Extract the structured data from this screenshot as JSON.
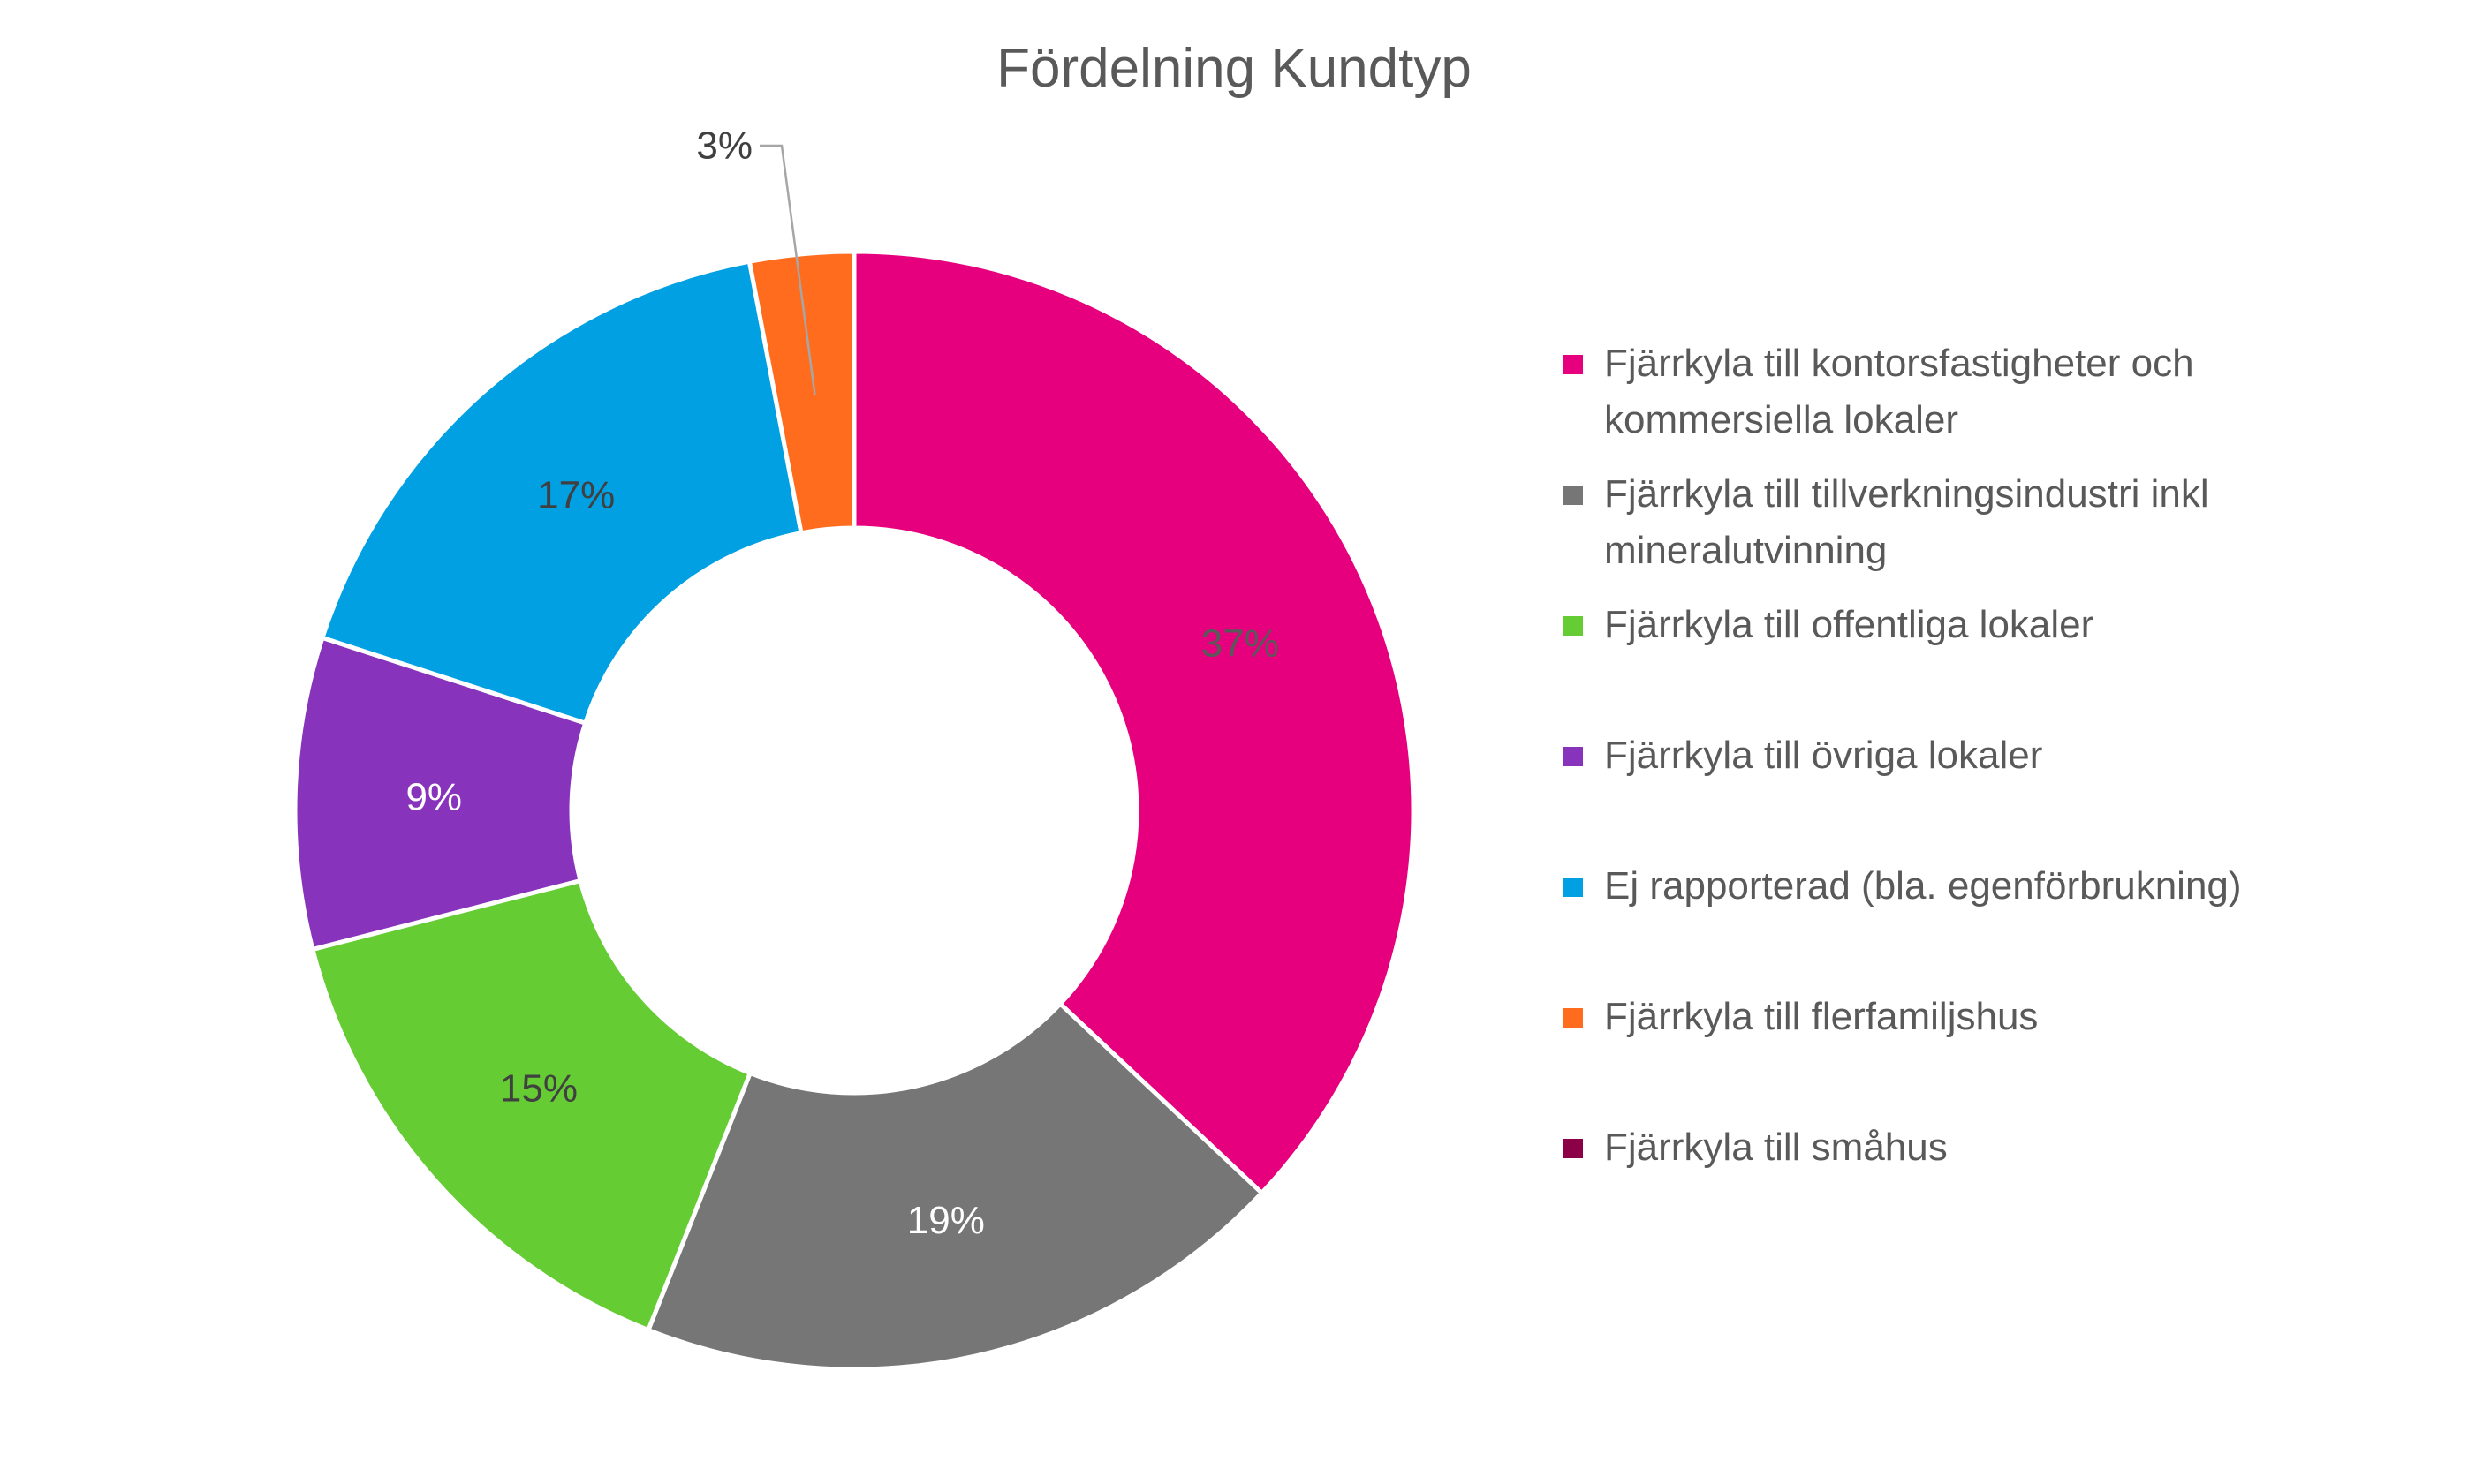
{
  "chart_data": {
    "type": "pie",
    "variant": "donut",
    "title": "Fördelning Kundtyp",
    "legend_position": "right",
    "slices": [
      {
        "name": "Fjärrkyla till kontorsfastigheter och kommersiella lokaler",
        "value": 37,
        "label": "37%",
        "color": "#E6007E",
        "label_color": "#595959"
      },
      {
        "name": "Fjärrkyla till tillverkningsindustri inkl mineralutvinning",
        "value": 19,
        "label": "19%",
        "color": "#767676",
        "label_color": "#ffffff"
      },
      {
        "name": "Fjärrkyla till offentliga lokaler",
        "value": 15,
        "label": "15%",
        "color": "#66CC33",
        "label_color": "#404040"
      },
      {
        "name": "Fjärrkyla till övriga lokaler",
        "value": 9,
        "label": "9%",
        "color": "#8833BB",
        "label_color": "#ffffff"
      },
      {
        "name": "Ej rapporterad (bla. egenförbrukning)",
        "value": 17,
        "label": "17%",
        "color": "#00A0E3",
        "label_color": "#404040"
      },
      {
        "name": "Fjärrkyla till flerfamiljshus",
        "value": 3,
        "label": "3%",
        "color": "#FF6C1E",
        "label_color": "#404040"
      },
      {
        "name": "Fjärrkyla till småhus",
        "value": 0,
        "label": "",
        "color": "#8B0046",
        "label_color": "#404040"
      }
    ]
  }
}
